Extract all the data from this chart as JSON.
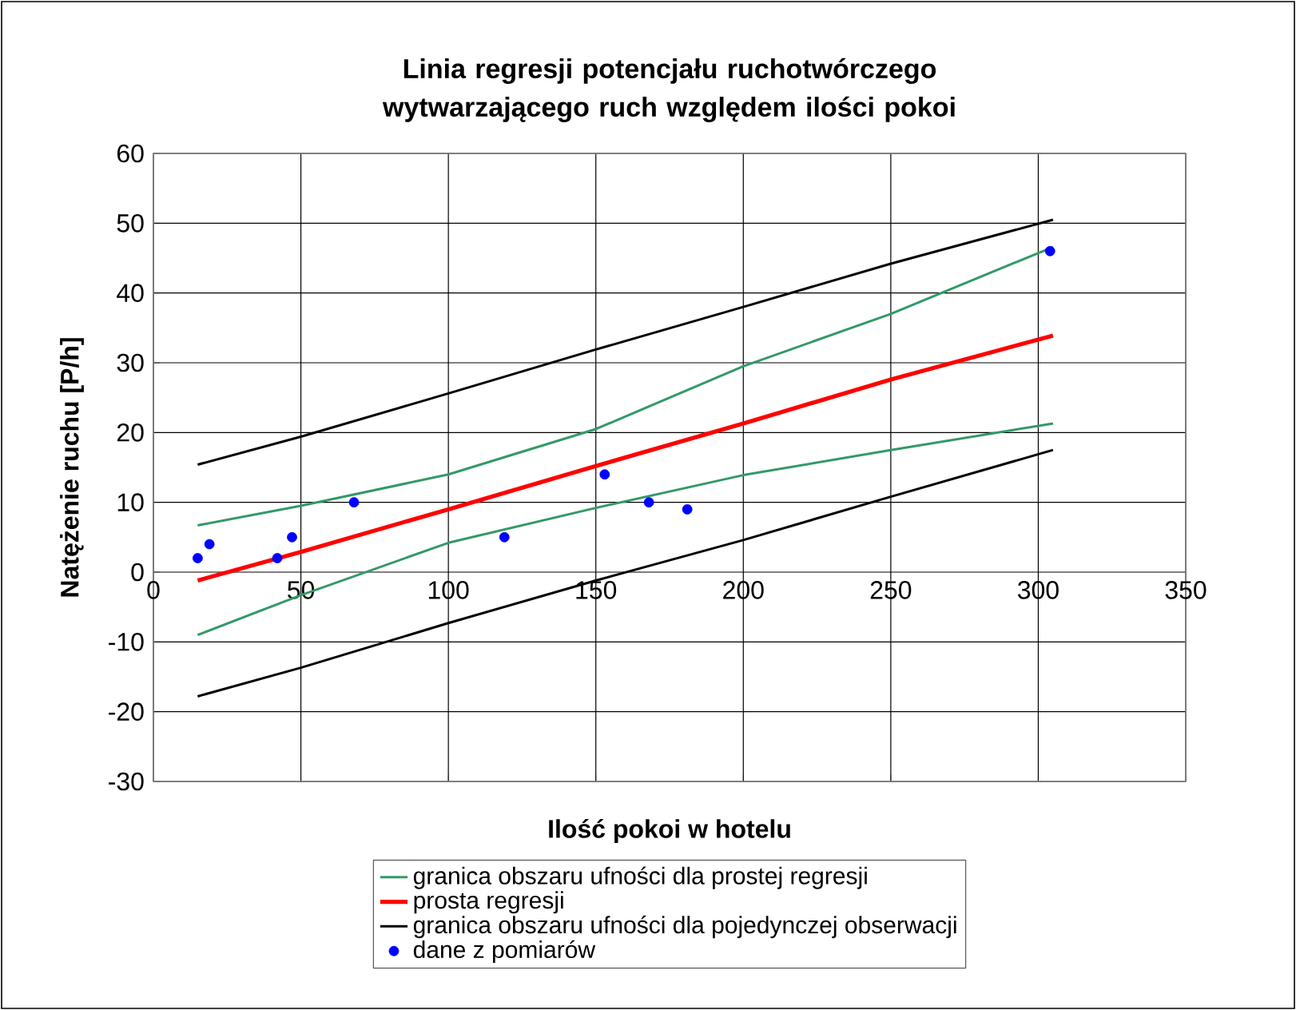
{
  "chart_data": {
    "type": "line",
    "title": "Linia regresji potencjału ruchotwórczego wytwarzającego ruch względem ilości pokoi",
    "xlabel": "Ilość pokoi w hotelu",
    "ylabel": "Natężenie ruchu [P/h]",
    "xlim": [
      0,
      350
    ],
    "xticks": [
      0,
      50,
      100,
      150,
      200,
      250,
      300,
      350
    ],
    "ylim": [
      -30,
      60
    ],
    "yticks": [
      -30,
      -20,
      -10,
      0,
      10,
      20,
      30,
      40,
      50,
      60
    ],
    "grid": true,
    "legend": "bottom",
    "series": [
      {
        "name": "granica obszaru ufności dla prostej regresji",
        "color": "#339966",
        "x": [
          15,
          50,
          100,
          150,
          200,
          250,
          305
        ],
        "values": [
          6.7,
          9.5,
          14.0,
          20.5,
          29.5,
          37.0,
          46.6
        ]
      },
      {
        "color": "#339966",
        "x": [
          15,
          50,
          100,
          150,
          200,
          250,
          305
        ],
        "values": [
          -9.0,
          -3.3,
          4.2,
          9.2,
          13.9,
          17.5,
          21.3
        ]
      },
      {
        "name": "prosta regresji",
        "color": "#ff0000",
        "x": [
          15,
          50,
          100,
          150,
          200,
          250,
          305
        ],
        "values": [
          -1.2,
          2.9,
          9.0,
          15.2,
          21.3,
          27.6,
          33.9
        ]
      },
      {
        "name": "granica obszaru ufności dla pojedynczej obserwacji",
        "color": "#000000",
        "x": [
          15,
          50,
          100,
          150,
          200,
          250,
          305
        ],
        "values": [
          15.4,
          19.4,
          25.6,
          31.9,
          38.0,
          44.2,
          50.5
        ]
      },
      {
        "color": "#000000",
        "x": [
          15,
          50,
          100,
          150,
          200,
          250,
          305
        ],
        "values": [
          -17.8,
          -13.7,
          -7.3,
          -1.2,
          4.6,
          10.8,
          17.5
        ]
      },
      {
        "name": "dane z pomiarów",
        "type": "scatter",
        "color": "#0000ff",
        "x": [
          15,
          19,
          42,
          47,
          68,
          119,
          153,
          168,
          181,
          304
        ],
        "values": [
          2,
          4,
          2,
          5,
          10,
          5,
          14,
          10,
          9,
          46
        ]
      }
    ]
  }
}
